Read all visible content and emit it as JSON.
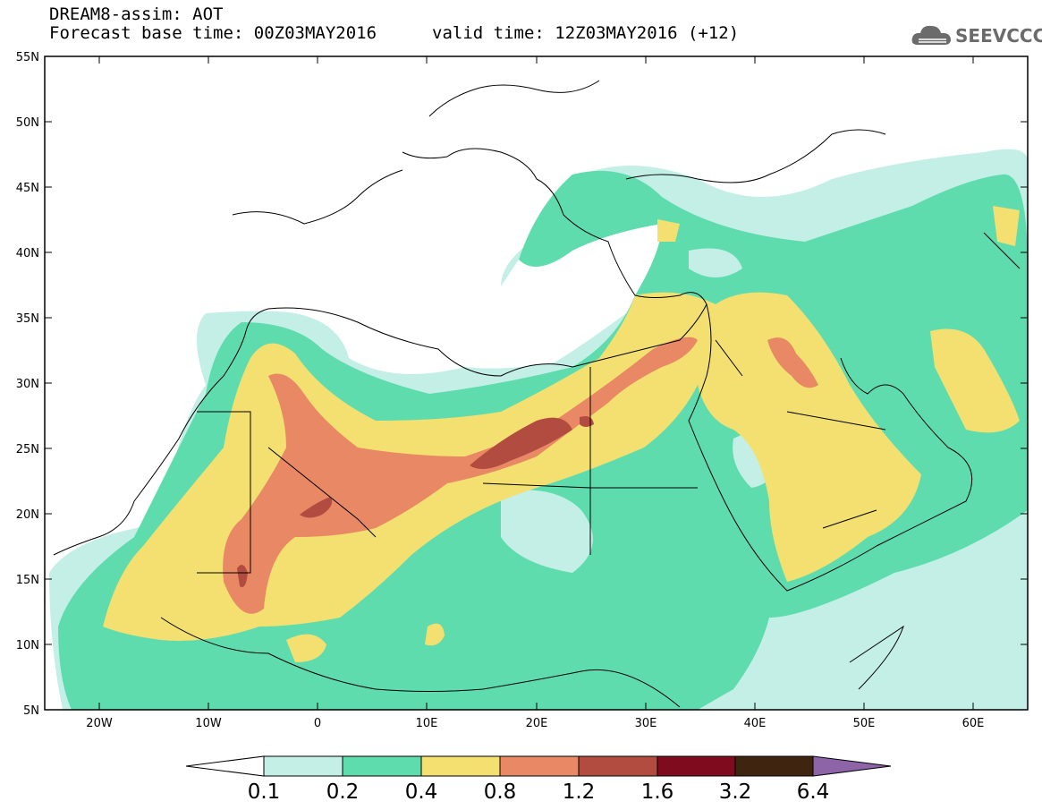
{
  "header": {
    "title": "DREAM8-assim: AOT",
    "base_time": "Forecast base time: 00Z03MAY2016",
    "valid_time": "valid time: 12Z03MAY2016 (+12)"
  },
  "logo": {
    "text": "SEEVCCC",
    "icon": "cloud-logo-icon"
  },
  "axes": {
    "lat_labels": [
      "55N",
      "50N",
      "45N",
      "40N",
      "35N",
      "30N",
      "25N",
      "20N",
      "15N",
      "10N",
      "5N"
    ],
    "lon_labels": [
      "20W",
      "10W",
      "0",
      "10E",
      "20E",
      "30E",
      "40E",
      "50E",
      "60E"
    ],
    "lon_range": [
      -25,
      65
    ],
    "lat_range": [
      5,
      55
    ]
  },
  "colorbar": {
    "labels": [
      "0.1",
      "0.2",
      "0.4",
      "0.8",
      "1.2",
      "1.6",
      "3.2",
      "6.4"
    ],
    "colors": [
      "#ffffff",
      "#c4efe6",
      "#5fdcae",
      "#f3e070",
      "#e88864",
      "#b24c40",
      "#7f0b1e",
      "#3f2510",
      "#8d64a8"
    ]
  }
}
